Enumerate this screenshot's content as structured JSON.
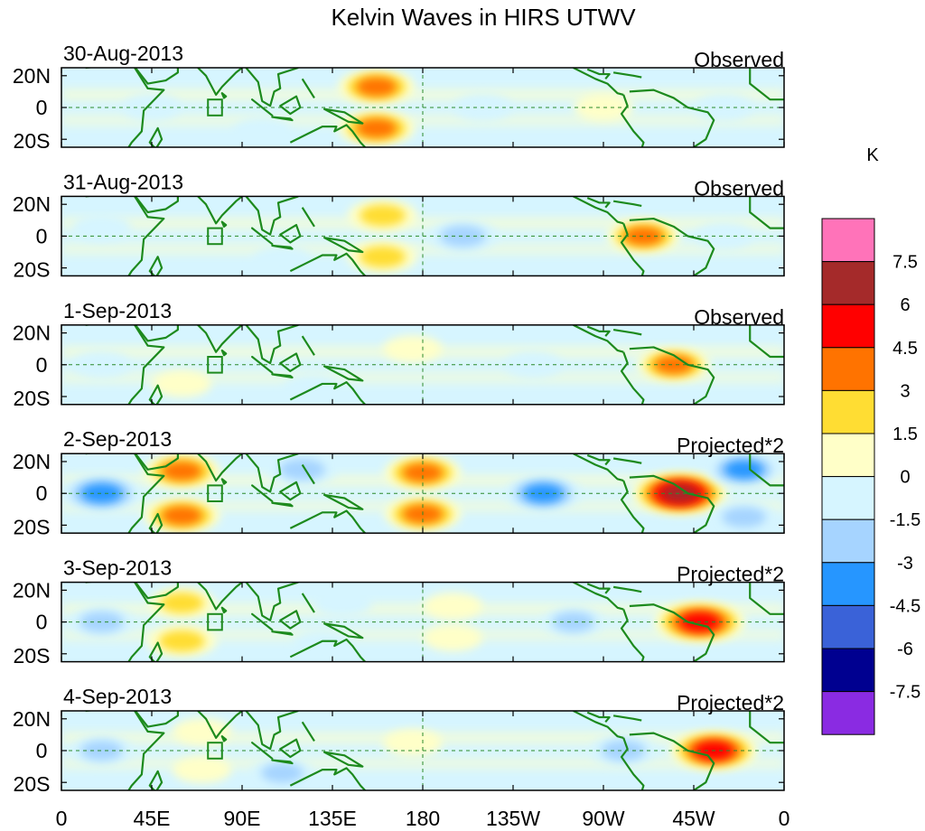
{
  "chart_data": {
    "type": "heatmap",
    "title": "Kelvin Waves in HIRS UTWV",
    "colorbar": {
      "unit": "K",
      "levels": [
        "7.5",
        "6",
        "4.5",
        "3",
        "1.5",
        "0",
        "-1.5",
        "-3",
        "-4.5",
        "-6",
        "-7.5"
      ],
      "colors": [
        "#ff73b9",
        "#a52a2a",
        "#ff0000",
        "#ff7300",
        "#ffdd33",
        "#ffffc8",
        "#d6f5ff",
        "#a6d4ff",
        "#2696ff",
        "#3a62d8",
        "#000090",
        "#8a2be2"
      ]
    },
    "x_ticks": [
      "0",
      "45E",
      "90E",
      "135E",
      "180",
      "135W",
      "90W",
      "45W",
      "0"
    ],
    "y_ticks": [
      "20N",
      "0",
      "20S"
    ],
    "xlim": [
      0,
      360
    ],
    "ylim": [
      -25,
      25
    ],
    "panels": [
      {
        "date": "30-Aug-2013",
        "label": "Observed",
        "features": [
          {
            "lon": 157,
            "lat": 13,
            "value": 4.5
          },
          {
            "lon": 157,
            "lat": -13,
            "value": 4.5
          },
          {
            "lon": 270,
            "lat": 0,
            "value": 2
          },
          {
            "lon": 45,
            "lat": 0,
            "value": -2
          },
          {
            "lon": 210,
            "lat": 0,
            "value": -2
          },
          {
            "lon": 330,
            "lat": 0,
            "value": -2
          },
          {
            "lon": 100,
            "lat": -15,
            "value": -2
          }
        ]
      },
      {
        "date": "31-Aug-2013",
        "label": "Observed",
        "features": [
          {
            "lon": 160,
            "lat": 13,
            "value": 3.5
          },
          {
            "lon": 160,
            "lat": -13,
            "value": 3.5
          },
          {
            "lon": 290,
            "lat": 0,
            "value": 4
          },
          {
            "lon": 200,
            "lat": 0,
            "value": -3.5
          },
          {
            "lon": 20,
            "lat": 5,
            "value": -2
          },
          {
            "lon": 110,
            "lat": -15,
            "value": -2
          },
          {
            "lon": 330,
            "lat": 0,
            "value": -2
          }
        ]
      },
      {
        "date": "1-Sep-2013",
        "label": "Observed",
        "features": [
          {
            "lon": 305,
            "lat": 0,
            "value": 4
          },
          {
            "lon": 175,
            "lat": 10,
            "value": 2
          },
          {
            "lon": 60,
            "lat": -12,
            "value": 2
          },
          {
            "lon": 20,
            "lat": 0,
            "value": -2
          },
          {
            "lon": 235,
            "lat": 0,
            "value": -2
          },
          {
            "lon": 125,
            "lat": -15,
            "value": -2
          }
        ]
      },
      {
        "date": "2-Sep-2013",
        "label": "Projected*2",
        "features": [
          {
            "lon": 308,
            "lat": 0,
            "value": 7
          },
          {
            "lon": 60,
            "lat": 14,
            "value": 4.5
          },
          {
            "lon": 60,
            "lat": -14,
            "value": 4.5
          },
          {
            "lon": 180,
            "lat": 13,
            "value": 4.5
          },
          {
            "lon": 180,
            "lat": -13,
            "value": 4.5
          },
          {
            "lon": 240,
            "lat": 0,
            "value": -4.5
          },
          {
            "lon": 20,
            "lat": 0,
            "value": -5
          },
          {
            "lon": 120,
            "lat": 15,
            "value": -3.5
          },
          {
            "lon": 340,
            "lat": 15,
            "value": -4
          },
          {
            "lon": 340,
            "lat": -15,
            "value": -3
          }
        ]
      },
      {
        "date": "3-Sep-2013",
        "label": "Projected*2",
        "features": [
          {
            "lon": 318,
            "lat": 0,
            "value": 6.5
          },
          {
            "lon": 60,
            "lat": 12,
            "value": 3
          },
          {
            "lon": 60,
            "lat": -12,
            "value": 3.5
          },
          {
            "lon": 195,
            "lat": 10,
            "value": 2
          },
          {
            "lon": 195,
            "lat": -10,
            "value": 2
          },
          {
            "lon": 20,
            "lat": 0,
            "value": -3
          },
          {
            "lon": 255,
            "lat": 0,
            "value": -2.5
          },
          {
            "lon": 140,
            "lat": 12,
            "value": -2
          },
          {
            "lon": 130,
            "lat": -14,
            "value": -2
          }
        ]
      },
      {
        "date": "4-Sep-2013",
        "label": "Projected*2",
        "features": [
          {
            "lon": 325,
            "lat": 0,
            "value": 6
          },
          {
            "lon": 70,
            "lat": 12,
            "value": 2
          },
          {
            "lon": 70,
            "lat": -12,
            "value": 2
          },
          {
            "lon": 175,
            "lat": 5,
            "value": 2
          },
          {
            "lon": 280,
            "lat": 0,
            "value": -3
          },
          {
            "lon": 20,
            "lat": 0,
            "value": -2.5
          },
          {
            "lon": 110,
            "lat": -14,
            "value": -2.5
          }
        ]
      }
    ]
  }
}
